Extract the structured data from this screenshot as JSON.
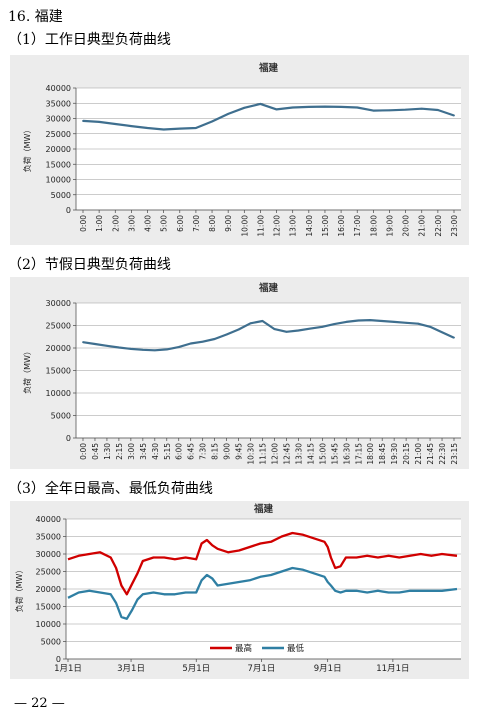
{
  "page": {
    "section_title": "16. 福建",
    "page_number": "— 22 —"
  },
  "chart_data": [
    {
      "type": "line",
      "heading": "（1）工作日典型负荷曲线",
      "title": "福建",
      "xlabel": "",
      "ylabel": "负荷（MW）",
      "ylim": [
        0,
        40000
      ],
      "yticks": [
        0,
        5000,
        10000,
        15000,
        20000,
        25000,
        30000,
        35000,
        40000
      ],
      "grid": true,
      "legend": "none",
      "colors": [
        "#3f6f8f"
      ],
      "categories": [
        "0:00",
        "1:00",
        "2:00",
        "3:00",
        "4:00",
        "5:00",
        "6:00",
        "7:00",
        "8:00",
        "9:00",
        "10:00",
        "11:00",
        "12:00",
        "13:00",
        "14:00",
        "15:00",
        "16:00",
        "17:00",
        "18:00",
        "19:00",
        "20:00",
        "21:00",
        "22:00",
        "23:00"
      ],
      "series": [
        {
          "values": [
            29200,
            28900,
            28200,
            27500,
            26900,
            26400,
            26700,
            26900,
            29000,
            31500,
            33500,
            34800,
            33000,
            33600,
            33800,
            33900,
            33800,
            33600,
            32600,
            32700,
            32900,
            33200,
            32800,
            31000
          ]
        }
      ]
    },
    {
      "type": "line",
      "heading": "（2）节假日典型负荷曲线",
      "title": "福建",
      "xlabel": "",
      "ylabel": "负荷（MW）",
      "ylim": [
        0,
        30000
      ],
      "yticks": [
        0,
        5000,
        10000,
        15000,
        20000,
        25000,
        30000
      ],
      "grid": true,
      "legend": "none",
      "colors": [
        "#3f6f8f"
      ],
      "categories": [
        "0:00",
        "0:45",
        "1:30",
        "2:15",
        "3:00",
        "3:45",
        "4:30",
        "5:15",
        "6:00",
        "6:45",
        "7:30",
        "8:15",
        "9:00",
        "9:45",
        "10:30",
        "11:15",
        "12:00",
        "12:45",
        "13:30",
        "14:15",
        "15:00",
        "15:45",
        "16:30",
        "17:15",
        "18:00",
        "18:45",
        "19:30",
        "20:15",
        "21:00",
        "21:45",
        "22:30",
        "23:15"
      ],
      "series": [
        {
          "values": [
            21300,
            20900,
            20500,
            20100,
            19800,
            19600,
            19500,
            19700,
            20200,
            21000,
            21400,
            22000,
            23000,
            24100,
            25500,
            26000,
            24200,
            23600,
            23900,
            24300,
            24700,
            25300,
            25800,
            26100,
            26200,
            26000,
            25800,
            25600,
            25400,
            24700,
            23500,
            22300
          ]
        }
      ]
    },
    {
      "type": "line",
      "heading": "（3）全年日最高、最低负荷曲线",
      "title": "福建",
      "xlabel": "",
      "ylabel": "负荷（MW）",
      "ylim": [
        0,
        40000
      ],
      "yticks": [
        0,
        5000,
        10000,
        15000,
        20000,
        25000,
        30000,
        35000,
        40000
      ],
      "grid": true,
      "legend": "bottom-center",
      "colors": [
        "#d00000",
        "#2f7fa3"
      ],
      "categories": [
        "1月1日",
        "3月1日",
        "5月1日",
        "7月1日",
        "9月1日",
        "11月1日"
      ],
      "x_days": [
        0,
        59,
        120,
        181,
        243,
        304
      ],
      "series": [
        {
          "name": "最高",
          "x": [
            0,
            10,
            20,
            30,
            40,
            45,
            50,
            55,
            60,
            65,
            70,
            80,
            90,
            100,
            110,
            120,
            125,
            130,
            135,
            140,
            150,
            160,
            170,
            180,
            190,
            200,
            210,
            220,
            230,
            240,
            243,
            246,
            250,
            255,
            260,
            270,
            280,
            290,
            300,
            310,
            320,
            330,
            340,
            350,
            364
          ],
          "values": [
            28500,
            29500,
            30000,
            30500,
            29000,
            26000,
            21000,
            18500,
            21500,
            24500,
            28000,
            29000,
            29000,
            28500,
            29000,
            28500,
            33000,
            34000,
            32500,
            31500,
            30500,
            31000,
            32000,
            33000,
            33500,
            35000,
            36000,
            35500,
            34500,
            33500,
            32000,
            29000,
            26000,
            26500,
            29000,
            29000,
            29500,
            29000,
            29500,
            29000,
            29500,
            30000,
            29500,
            30000,
            29500
          ]
        },
        {
          "name": "最低",
          "x": [
            0,
            10,
            20,
            30,
            40,
            45,
            50,
            55,
            60,
            65,
            70,
            80,
            90,
            100,
            110,
            120,
            125,
            130,
            135,
            140,
            150,
            160,
            170,
            180,
            190,
            200,
            210,
            220,
            230,
            240,
            243,
            246,
            250,
            255,
            260,
            270,
            280,
            290,
            300,
            310,
            320,
            330,
            340,
            350,
            364
          ],
          "values": [
            17500,
            19000,
            19500,
            19000,
            18500,
            16000,
            12000,
            11500,
            14000,
            17000,
            18500,
            19000,
            18500,
            18500,
            19000,
            19000,
            22500,
            24000,
            23000,
            21000,
            21500,
            22000,
            22500,
            23500,
            24000,
            25000,
            26000,
            25500,
            24500,
            23500,
            22000,
            21000,
            19500,
            19000,
            19500,
            19500,
            19000,
            19500,
            19000,
            19000,
            19500,
            19500,
            19500,
            19500,
            20000
          ]
        }
      ],
      "legend_labels": [
        "最高",
        "最低"
      ]
    }
  ]
}
